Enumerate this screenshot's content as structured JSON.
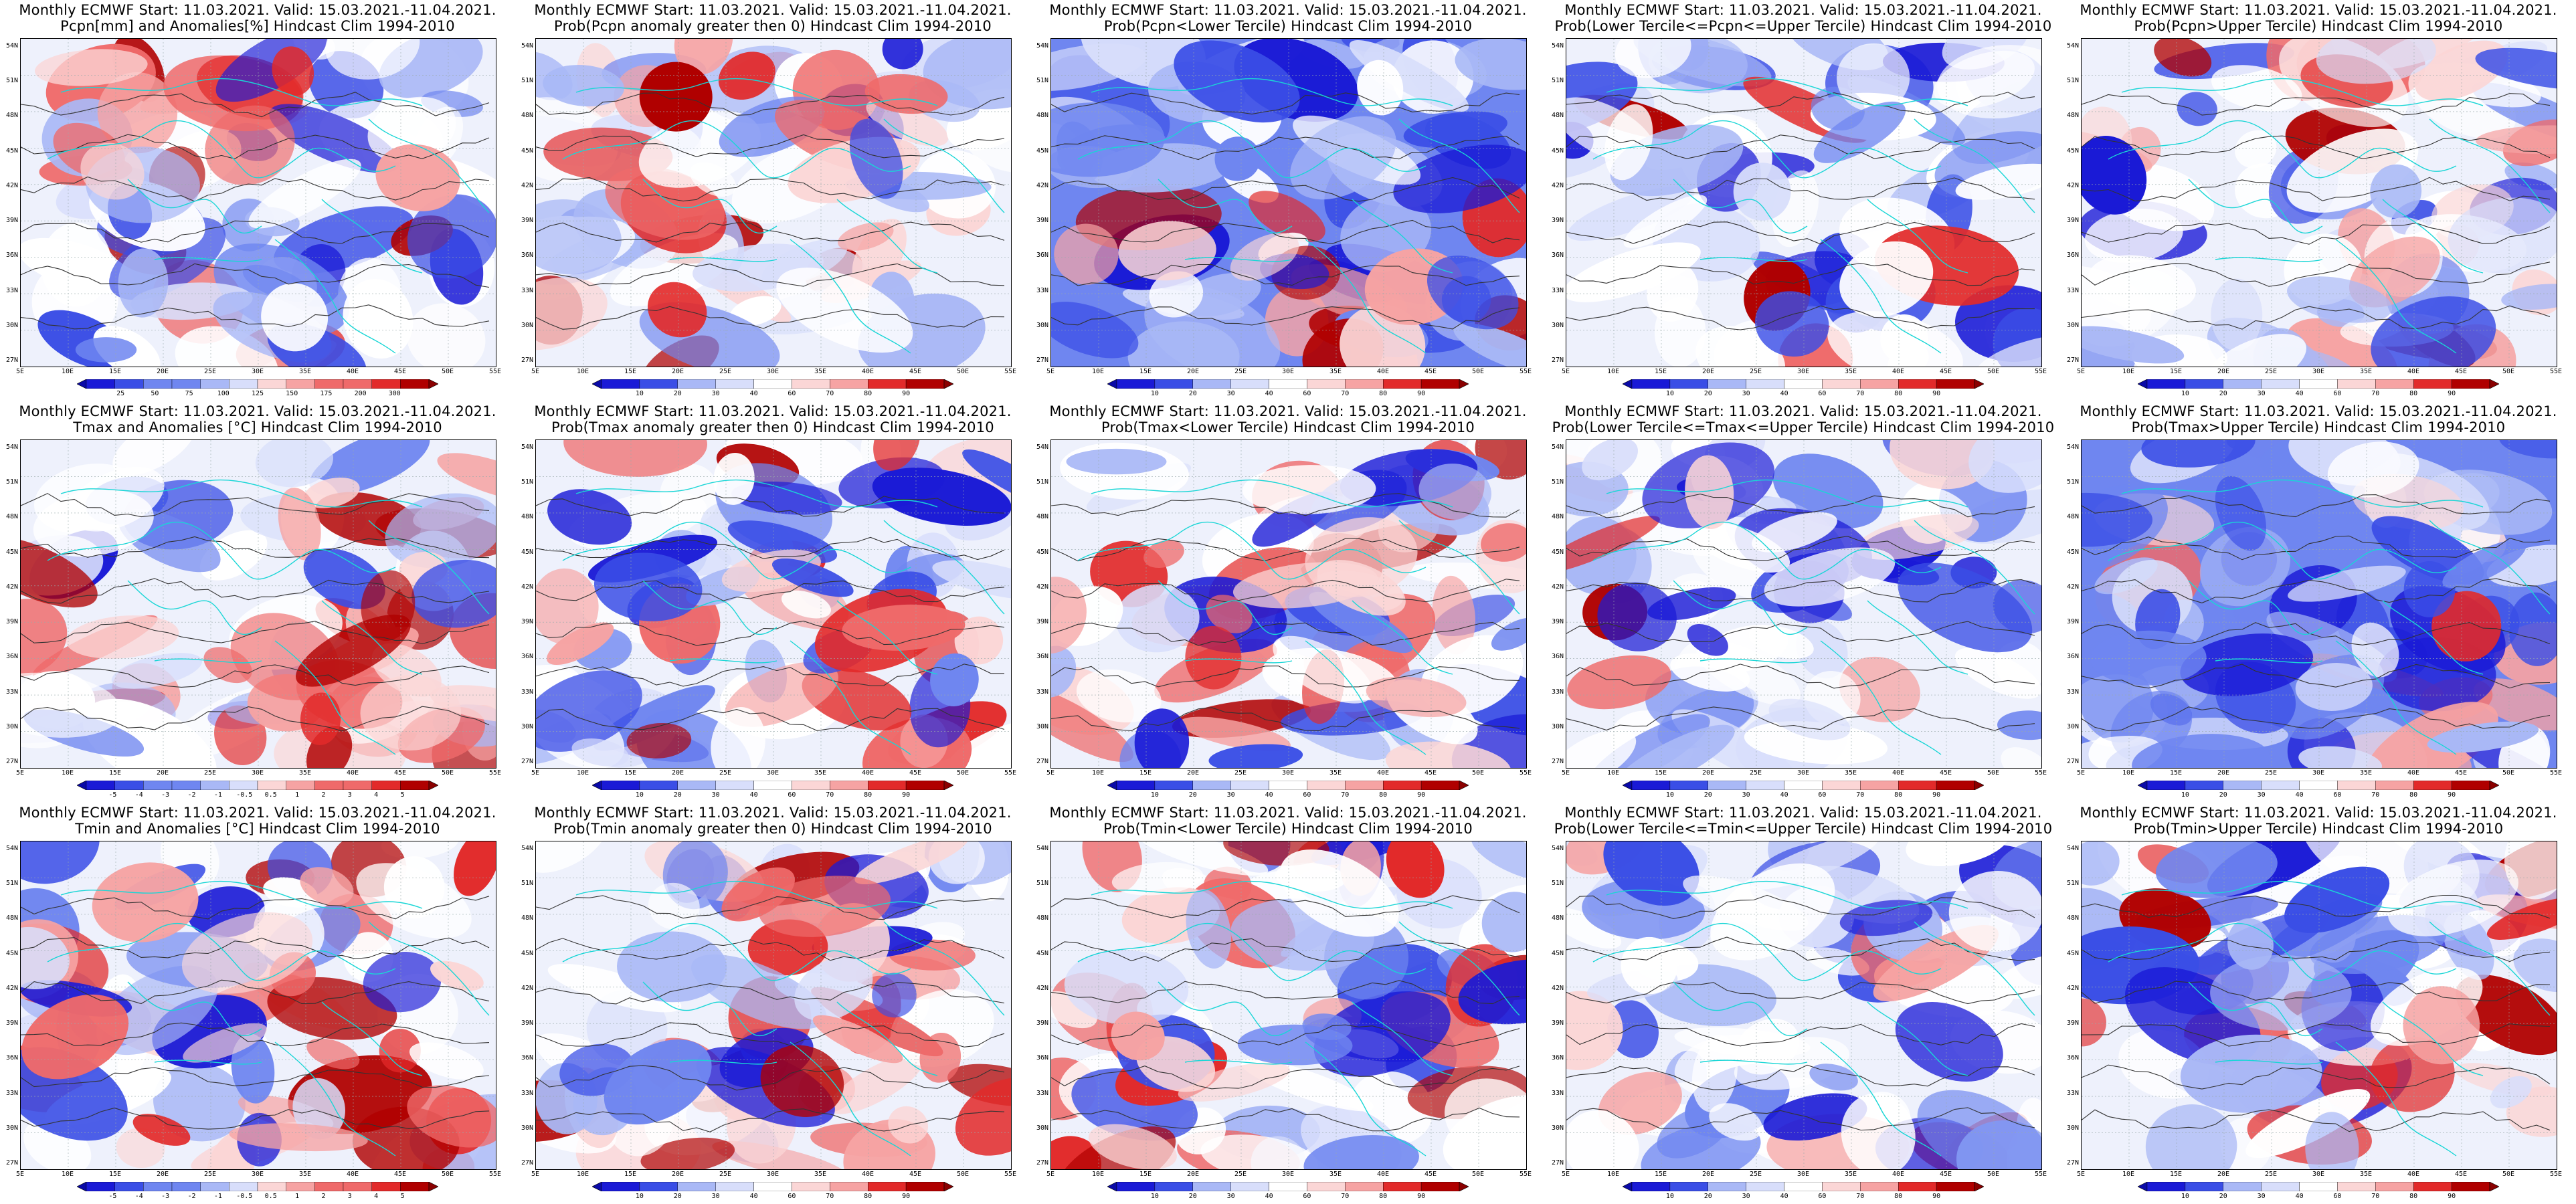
{
  "panels": [
    {
      "line1": "Monthly ECMWF Start: 11.03.2021. Valid: 15.03.2021.-11.04.2021.",
      "line2": "Pcpn[mm] and Anomalies[%] Hindcast Clim 1994-2010",
      "scheme": "anom",
      "cbar": [
        "25",
        "50",
        "75",
        "100",
        "125",
        "150",
        "175",
        "200",
        "300"
      ]
    },
    {
      "line1": "Monthly ECMWF Start: 11.03.2021. Valid: 15.03.2021.-11.04.2021.",
      "line2": "Prob(Pcpn anomaly greater then 0) Hindcast Clim 1994-2010",
      "scheme": "prob",
      "cbar": [
        "10",
        "20",
        "30",
        "40",
        "60",
        "70",
        "80",
        "90"
      ]
    },
    {
      "line1": "Monthly ECMWF Start: 11.03.2021. Valid: 15.03.2021.-11.04.2021.",
      "line2": "Prob(Pcpn<Lower Tercile) Hindcast Clim 1994-2010",
      "scheme": "prob",
      "cbar": [
        "10",
        "20",
        "30",
        "40",
        "60",
        "70",
        "80",
        "90"
      ]
    },
    {
      "line1": "Monthly ECMWF Start: 11.03.2021. Valid: 15.03.2021.-11.04.2021.",
      "line2": "Prob(Lower Tercile<=Pcpn<=Upper Tercile) Hindcast Clim 1994-2010",
      "scheme": "prob",
      "cbar": [
        "10",
        "20",
        "30",
        "40",
        "60",
        "70",
        "80",
        "90"
      ]
    },
    {
      "line1": "Monthly ECMWF Start: 11.03.2021. Valid: 15.03.2021.-11.04.2021.",
      "line2": "Prob(Pcpn>Upper Tercile) Hindcast Clim 1994-2010",
      "scheme": "prob",
      "cbar": [
        "10",
        "20",
        "30",
        "40",
        "60",
        "70",
        "80",
        "90"
      ]
    },
    {
      "line1": "Monthly ECMWF Start: 11.03.2021. Valid: 15.03.2021.-11.04.2021.",
      "line2": "Tmax and Anomalies [°C] Hindcast Clim 1994-2010",
      "scheme": "anom",
      "cbar": [
        "-5",
        "-4",
        "-3",
        "-2",
        "-1",
        "-0.5",
        "0.5",
        "1",
        "2",
        "3",
        "4",
        "5"
      ]
    },
    {
      "line1": "Monthly ECMWF Start: 11.03.2021. Valid: 15.03.2021.-11.04.2021.",
      "line2": "Prob(Tmax anomaly greater then 0) Hindcast Clim 1994-2010",
      "scheme": "prob",
      "cbar": [
        "10",
        "20",
        "30",
        "40",
        "60",
        "70",
        "80",
        "90"
      ]
    },
    {
      "line1": "Monthly ECMWF Start: 11.03.2021. Valid: 15.03.2021.-11.04.2021.",
      "line2": "Prob(Tmax<Lower Tercile) Hindcast Clim 1994-2010",
      "scheme": "prob",
      "cbar": [
        "10",
        "20",
        "30",
        "40",
        "60",
        "70",
        "80",
        "90"
      ]
    },
    {
      "line1": "Monthly ECMWF Start: 11.03.2021. Valid: 15.03.2021.-11.04.2021.",
      "line2": "Prob(Lower Tercile<=Tmax<=Upper Tercile) Hindcast Clim 1994-2010",
      "scheme": "prob",
      "cbar": [
        "10",
        "20",
        "30",
        "40",
        "60",
        "70",
        "80",
        "90"
      ]
    },
    {
      "line1": "Monthly ECMWF Start: 11.03.2021. Valid: 15.03.2021.-11.04.2021.",
      "line2": "Prob(Tmax>Upper Tercile) Hindcast Clim 1994-2010",
      "scheme": "prob",
      "cbar": [
        "10",
        "20",
        "30",
        "40",
        "60",
        "70",
        "80",
        "90"
      ]
    },
    {
      "line1": "Monthly ECMWF Start: 11.03.2021. Valid: 15.03.2021.-11.04.2021.",
      "line2": "Tmin and Anomalies [°C] Hindcast Clim 1994-2010",
      "scheme": "anom",
      "cbar": [
        "-5",
        "-4",
        "-3",
        "-2",
        "-1",
        "-0.5",
        "0.5",
        "1",
        "2",
        "3",
        "4",
        "5"
      ]
    },
    {
      "line1": "Monthly ECMWF Start: 11.03.2021. Valid: 15.03.2021.-11.04.2021.",
      "line2": "Prob(Tmin anomaly greater then 0) Hindcast Clim 1994-2010",
      "scheme": "prob",
      "cbar": [
        "10",
        "20",
        "30",
        "40",
        "60",
        "70",
        "80",
        "90"
      ]
    },
    {
      "line1": "Monthly ECMWF Start: 11.03.2021. Valid: 15.03.2021.-11.04.2021.",
      "line2": "Prob(Tmin<Lower Tercile) Hindcast Clim 1994-2010",
      "scheme": "prob",
      "cbar": [
        "10",
        "20",
        "30",
        "40",
        "60",
        "70",
        "80",
        "90"
      ]
    },
    {
      "line1": "Monthly ECMWF Start: 11.03.2021. Valid: 15.03.2021.-11.04.2021.",
      "line2": "Prob(Lower Tercile<=Tmin<=Upper Tercile) Hindcast Clim 1994-2010",
      "scheme": "prob",
      "cbar": [
        "10",
        "20",
        "30",
        "40",
        "60",
        "70",
        "80",
        "90"
      ]
    },
    {
      "line1": "Monthly ECMWF Start: 11.03.2021. Valid: 15.03.2021.-11.04.2021.",
      "line2": "Prob(Tmin>Upper Tercile) Hindcast Clim 1994-2010",
      "scheme": "prob",
      "cbar": [
        "10",
        "20",
        "30",
        "40",
        "60",
        "70",
        "80",
        "90"
      ]
    }
  ],
  "axes": {
    "lat_labels": [
      "54N",
      "51N",
      "48N",
      "45N",
      "42N",
      "39N",
      "36N",
      "33N",
      "30N",
      "27N"
    ],
    "lon_labels": [
      "5E",
      "10E",
      "15E",
      "20E",
      "25E",
      "30E",
      "35E",
      "40E",
      "45E",
      "50E",
      "55E"
    ]
  },
  "colors": {
    "cold": [
      "#1a1ad6",
      "#3a4ee6",
      "#6f86f0",
      "#a9b8f6",
      "#d8defb"
    ],
    "neutral": "#ffffff",
    "warm": [
      "#fbd6d6",
      "#f6a3a3",
      "#ef6a6a",
      "#e22a2a",
      "#b00000"
    ],
    "coastline": "#19d6d6",
    "contour": "#333333"
  }
}
